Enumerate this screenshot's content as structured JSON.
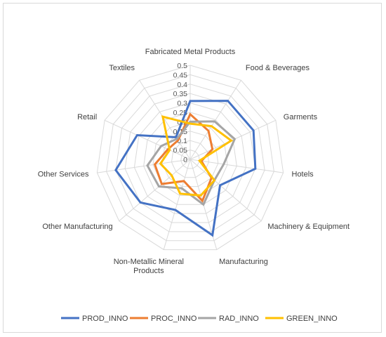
{
  "chart_data": {
    "type": "radar",
    "title": "",
    "categories": [
      "Fabricated Metal Products",
      "Food & Beverages",
      "Garments",
      "Hotels",
      "Machinery & Equipment",
      "Manufacturing",
      "Non-Metallic Mineral Products",
      "Other Manufacturing",
      "Other Services",
      "Retail",
      "Textiles"
    ],
    "radial_ticks": [
      "0",
      "0.05",
      "0.1",
      "0.15",
      "0.2",
      "0.25",
      "0.3",
      "0.35",
      "0.4",
      "0.45",
      "0.5"
    ],
    "rmax": 0.5,
    "grid": true,
    "legend_position": "bottom",
    "series": [
      {
        "name": "PROD_INNO",
        "color": "#4472c4",
        "values": [
          0.31,
          0.37,
          0.37,
          0.35,
          0.21,
          0.42,
          0.28,
          0.35,
          0.4,
          0.31,
          0.14
        ]
      },
      {
        "name": "PROC_INNO",
        "color": "#ed7d31",
        "values": [
          0.24,
          0.18,
          0.13,
          0.06,
          0.15,
          0.23,
          0.12,
          0.2,
          0.19,
          0.13,
          0.12
        ]
      },
      {
        "name": "RAD_INNO",
        "color": "#a5a5a5",
        "values": [
          0.2,
          0.24,
          0.26,
          0.18,
          0.17,
          0.25,
          0.16,
          0.22,
          0.23,
          0.17,
          0.13
        ]
      },
      {
        "name": "GREEN_INNO",
        "color": "#ffc000",
        "values": [
          0.19,
          0.21,
          0.24,
          0.05,
          0.17,
          0.2,
          0.19,
          0.13,
          0.16,
          0.12,
          0.27
        ]
      }
    ],
    "category_label_lines": [
      [
        "Fabricated Metal Products"
      ],
      [
        "Food & Beverages"
      ],
      [
        "Garments"
      ],
      [
        "Hotels"
      ],
      [
        "Machinery & Equipment"
      ],
      [
        "Manufacturing"
      ],
      [
        "Non-Metallic Mineral",
        "Products"
      ],
      [
        "Other Manufacturing"
      ],
      [
        "Other Services"
      ],
      [
        "Retail"
      ],
      [
        "Textiles"
      ]
    ]
  }
}
